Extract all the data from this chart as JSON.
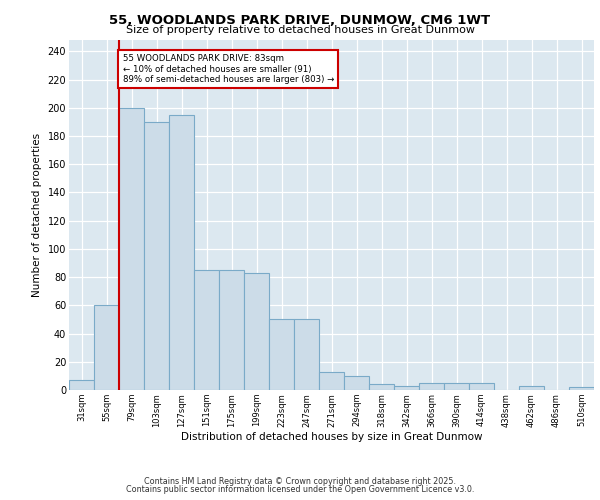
{
  "title1": "55, WOODLANDS PARK DRIVE, DUNMOW, CM6 1WT",
  "title2": "Size of property relative to detached houses in Great Dunmow",
  "xlabel": "Distribution of detached houses by size in Great Dunmow",
  "ylabel": "Number of detached properties",
  "categories": [
    "31sqm",
    "55sqm",
    "79sqm",
    "103sqm",
    "127sqm",
    "151sqm",
    "175sqm",
    "199sqm",
    "223sqm",
    "247sqm",
    "271sqm",
    "294sqm",
    "318sqm",
    "342sqm",
    "366sqm",
    "390sqm",
    "414sqm",
    "438sqm",
    "462sqm",
    "486sqm",
    "510sqm"
  ],
  "values": [
    7,
    60,
    200,
    190,
    195,
    85,
    85,
    83,
    50,
    50,
    13,
    10,
    4,
    3,
    5,
    5,
    5,
    0,
    3,
    0,
    2
  ],
  "bar_color": "#ccdce8",
  "bar_edge_color": "#7aaac8",
  "annotation_text": "55 WOODLANDS PARK DRIVE: 83sqm\n← 10% of detached houses are smaller (91)\n89% of semi-detached houses are larger (803) →",
  "annotation_box_color": "#ffffff",
  "annotation_box_edge": "#cc0000",
  "vline_color": "#cc0000",
  "background_color": "#dce8f0",
  "grid_color": "#ffffff",
  "ylim": [
    0,
    248
  ],
  "yticks": [
    0,
    20,
    40,
    60,
    80,
    100,
    120,
    140,
    160,
    180,
    200,
    220,
    240
  ],
  "footer1": "Contains HM Land Registry data © Crown copyright and database right 2025.",
  "footer2": "Contains public sector information licensed under the Open Government Licence v3.0."
}
